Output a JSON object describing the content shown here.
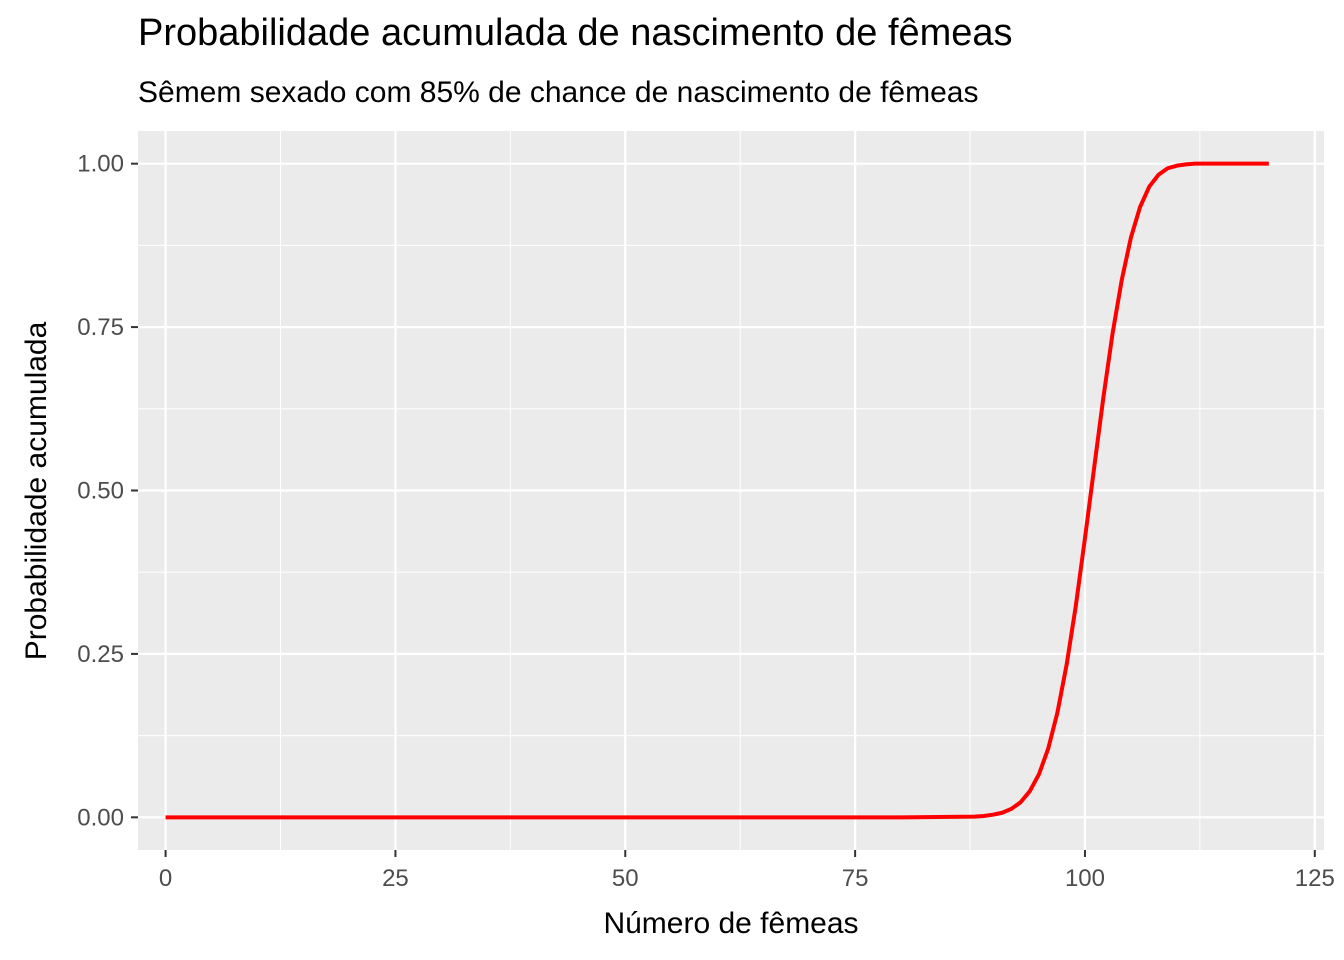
{
  "chart_data": {
    "type": "line",
    "title": "Probabilidade acumulada de nascimento de fêmeas",
    "subtitle": "Sêmem sexado com 85% de chance de nascimento de fêmeas",
    "xlabel": "Número de fêmeas",
    "ylabel": "Probabilidade acumulada",
    "xlim": [
      -3,
      126
    ],
    "ylim": [
      -0.05,
      1.05
    ],
    "x_ticks": [
      0,
      25,
      50,
      75,
      100,
      125
    ],
    "x_tick_labels": [
      "0",
      "25",
      "50",
      "75",
      "100",
      "125"
    ],
    "y_ticks": [
      0,
      0.25,
      0.5,
      0.75,
      1.0
    ],
    "y_tick_labels": [
      "0.00",
      "0.25",
      "0.50",
      "0.75",
      "1.00"
    ],
    "grid": true,
    "legend": "none",
    "series": [
      {
        "color": "#ff0000",
        "x": [
          0,
          10,
          20,
          30,
          40,
          50,
          60,
          70,
          80,
          88,
          89,
          90,
          91,
          92,
          93,
          94,
          95,
          96,
          97,
          98,
          99,
          100,
          101,
          102,
          103,
          104,
          105,
          106,
          107,
          108,
          109,
          110,
          111,
          112,
          113,
          114,
          115,
          116,
          117,
          118,
          119,
          120
        ],
        "y": [
          0,
          0,
          0,
          0,
          0,
          0,
          0,
          0,
          0,
          0.001,
          0.002,
          0.004,
          0.007,
          0.013,
          0.023,
          0.04,
          0.066,
          0.105,
          0.16,
          0.233,
          0.323,
          0.427,
          0.535,
          0.642,
          0.74,
          0.822,
          0.887,
          0.934,
          0.965,
          0.983,
          0.993,
          0.997,
          0.999,
          1,
          1,
          1,
          1,
          1,
          1,
          1,
          1,
          1
        ]
      }
    ]
  },
  "colors": {
    "panel_background": "#ebebeb",
    "grid": "#ffffff",
    "line": "#ff0000",
    "tick_text": "#4d4d4d"
  }
}
